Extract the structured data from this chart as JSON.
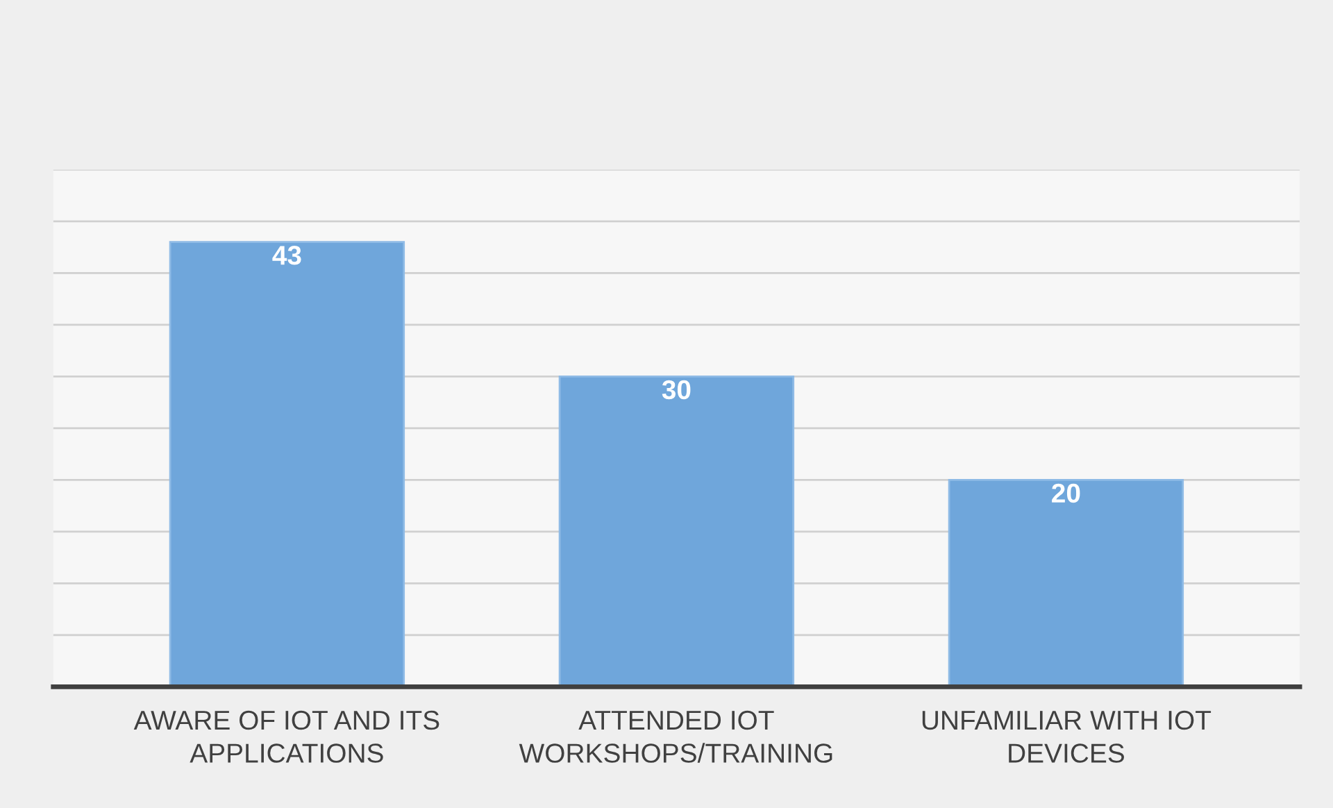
{
  "chart_data": {
    "type": "bar",
    "categories": [
      "AWARE OF IOT AND ITS APPLICATIONS",
      "ATTENDED IOT WORKSHOPS/TRAINING",
      "UNFAMILIAR WITH IOT DEVICES"
    ],
    "values": [
      43,
      30,
      20
    ],
    "color": "#6fa6db",
    "ylim": [
      0,
      50
    ],
    "yticks": [
      {
        "value": 0,
        "label": null
      },
      {
        "value": 5,
        "label": null
      },
      {
        "value": 10,
        "label": null
      },
      {
        "value": 15,
        "label": null
      },
      {
        "value": 20,
        "label": null
      },
      {
        "value": 25,
        "label": null
      },
      {
        "value": 30,
        "label": null
      },
      {
        "value": 35,
        "label": null
      },
      {
        "value": 40,
        "label": null
      },
      {
        "value": 45,
        "label": null
      },
      {
        "value": 50,
        "label": null
      }
    ],
    "grid": "y",
    "tick_labels": "x",
    "data_labels": true
  }
}
